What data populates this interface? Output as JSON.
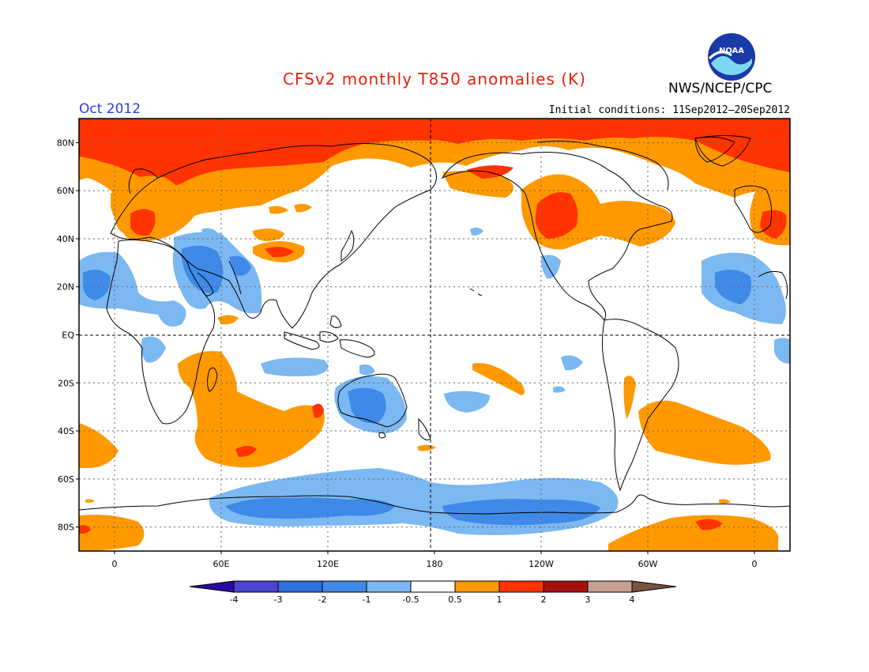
{
  "header": {
    "title": "CFSv2 monthly T850 anomalies (K)",
    "agency": "NWS/NCEP/CPC",
    "logo_text": "NOAA",
    "month": "Oct 2012",
    "initial_conditions": "Initial conditions: 11Sep2012–20Sep2012"
  },
  "map": {
    "projection": "equirectangular",
    "lon_range": [
      -20,
      380
    ],
    "lat_range": [
      -90,
      90
    ],
    "lat_labels": [
      "80N",
      "60N",
      "40N",
      "20N",
      "EQ",
      "20S",
      "40S",
      "60S",
      "80S"
    ],
    "lon_labels": [
      "0",
      "60E",
      "120E",
      "180",
      "120W",
      "60W",
      "0"
    ],
    "grid": "dotted",
    "colors": {
      "ocean_land_background": "#ffffff",
      "coastline": "#000000"
    }
  },
  "legend": {
    "levels": [
      "-4",
      "-3",
      "-2",
      "-1",
      "-0.5",
      "0.5",
      "1",
      "2",
      "3",
      "4"
    ],
    "colors": [
      "#2b0aa0",
      "#4a44d0",
      "#2e6fdc",
      "#3f8ae8",
      "#7cb8f2",
      "#ffffff",
      "#ff9900",
      "#ff3300",
      "#a81010",
      "#c8a090",
      "#7a5040"
    ]
  }
}
